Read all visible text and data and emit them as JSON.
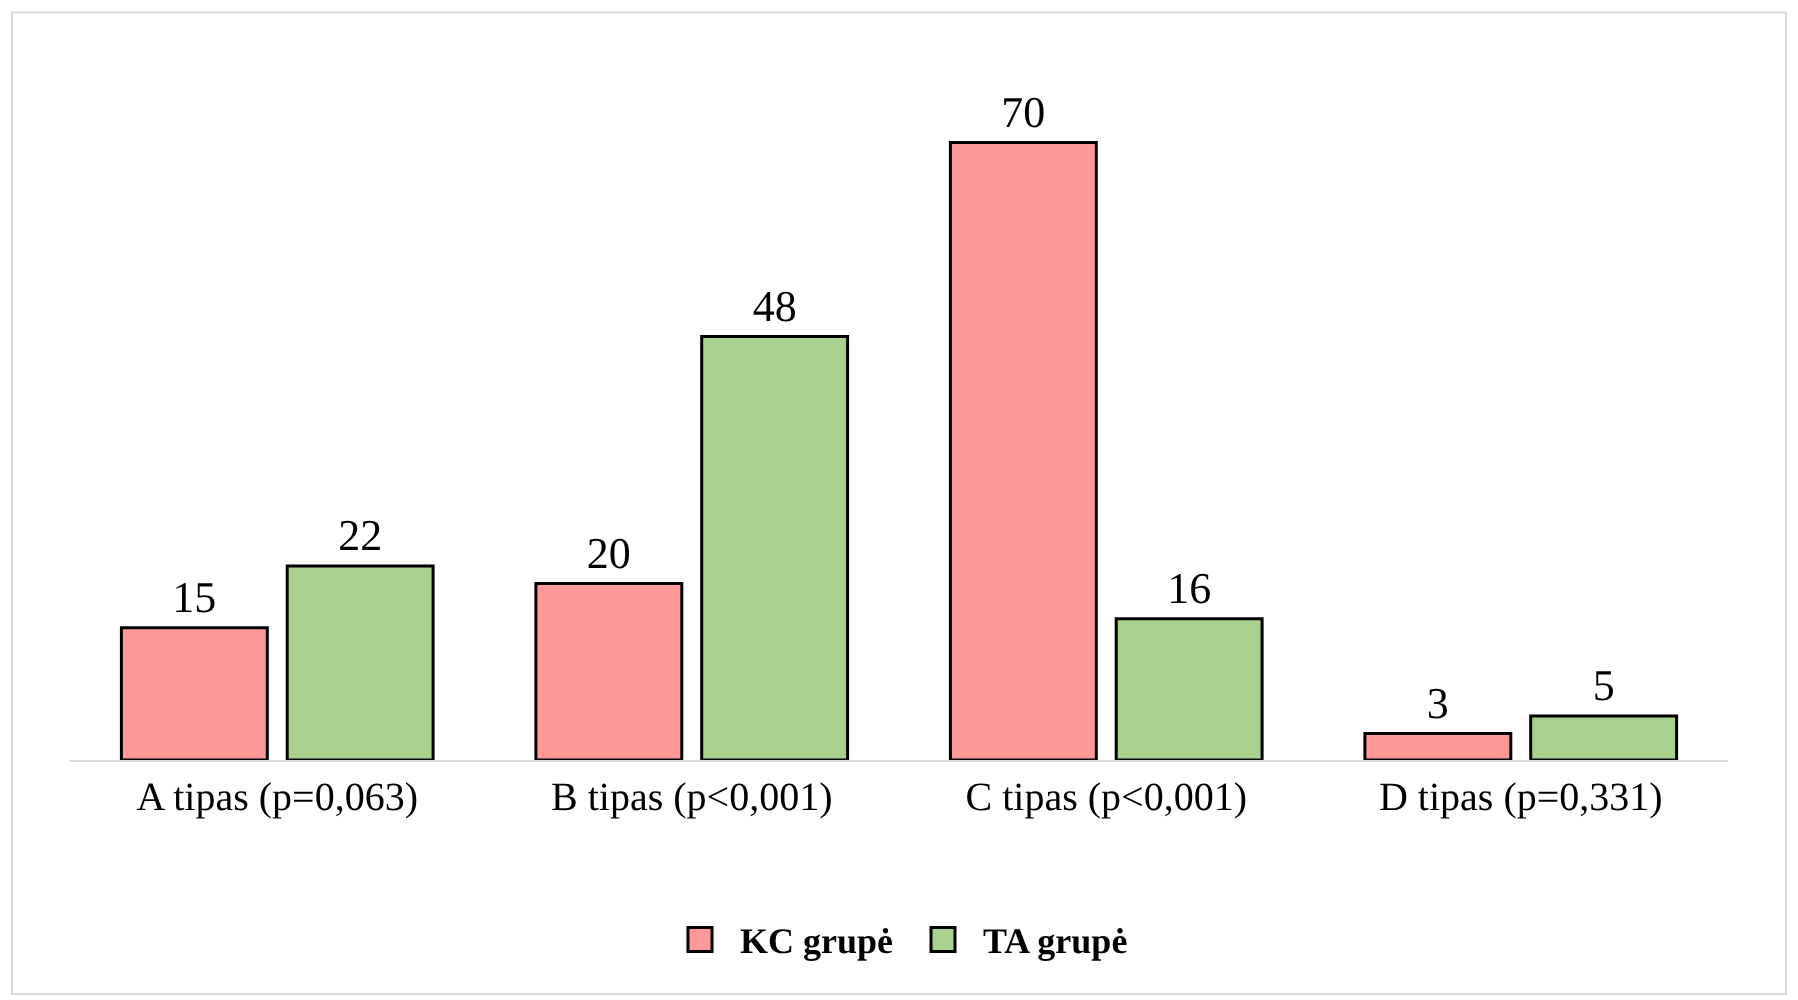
{
  "chart_data": {
    "type": "bar",
    "categories": [
      "A tipas (p=0,063)",
      "B tipas (p<0,001)",
      "C tipas (p<0,001)",
      "D tipas (p=0,331)"
    ],
    "series": [
      {
        "name": "KC grupė",
        "color": "#ff9999",
        "values": [
          15,
          20,
          70,
          3
        ]
      },
      {
        "name": "TA grupė",
        "color": "#a9d18e",
        "values": [
          22,
          48,
          16,
          5
        ]
      }
    ],
    "data_labels": true,
    "legend": "bottom"
  }
}
